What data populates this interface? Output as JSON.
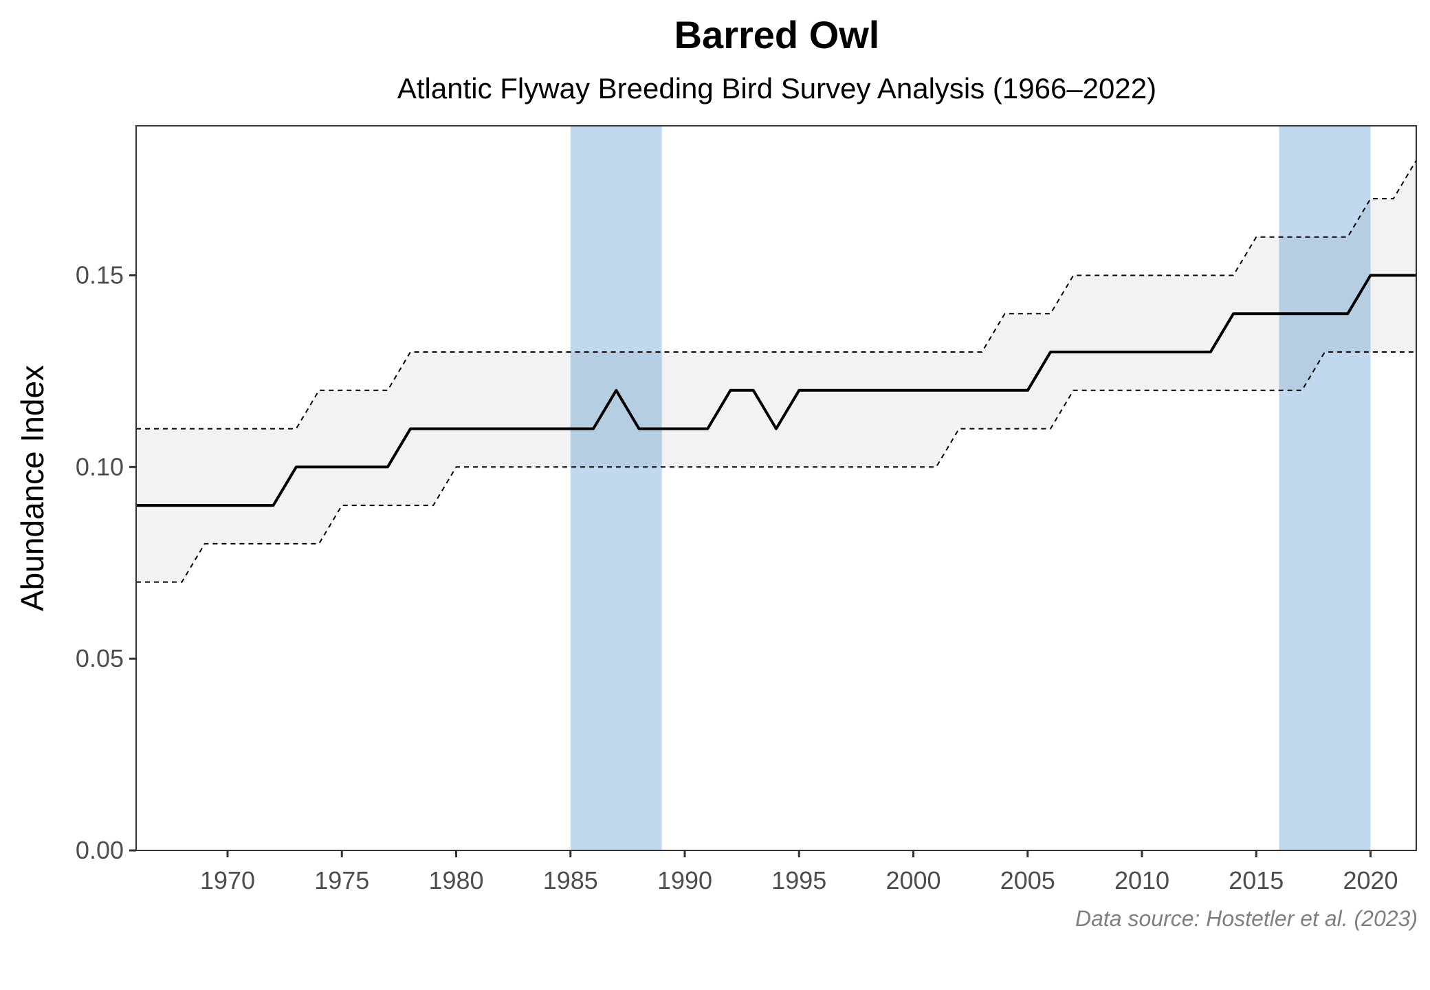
{
  "chart_data": {
    "type": "line",
    "title": "Barred Owl",
    "subtitle": "Atlantic Flyway Breeding Bird Survey Analysis (1966–2022)",
    "xlabel": "",
    "ylabel": "Abundance Index",
    "caption": "Data source: Hostetler et al. (2023)",
    "xlim": [
      1966,
      2022
    ],
    "ylim": [
      0,
      0.189
    ],
    "x_ticks": [
      1970,
      1975,
      1980,
      1985,
      1990,
      1995,
      2000,
      2005,
      2010,
      2015,
      2020
    ],
    "x_tick_labels": [
      "1970",
      "1975",
      "1980",
      "1985",
      "1990",
      "1995",
      "2000",
      "2005",
      "2010",
      "2015",
      "2020"
    ],
    "y_ticks": [
      0,
      0.05,
      0.1,
      0.15
    ],
    "y_tick_labels": [
      "0.00",
      "0.05",
      "0.10",
      "0.15"
    ],
    "grid": false,
    "highlight_periods": [
      {
        "start": 1985,
        "end": 1989
      },
      {
        "start": 2016,
        "end": 2020
      }
    ],
    "colors": {
      "highlight": "#bdd7ee",
      "ci_band": "#f2f2f2",
      "line": "#000000",
      "ci_line": "#000000"
    },
    "x": [
      1966,
      1967,
      1968,
      1969,
      1970,
      1971,
      1972,
      1973,
      1974,
      1975,
      1976,
      1977,
      1978,
      1979,
      1980,
      1981,
      1982,
      1983,
      1984,
      1985,
      1986,
      1987,
      1988,
      1989,
      1990,
      1991,
      1992,
      1993,
      1994,
      1995,
      1996,
      1997,
      1998,
      1999,
      2000,
      2001,
      2002,
      2003,
      2004,
      2005,
      2006,
      2007,
      2008,
      2009,
      2010,
      2011,
      2012,
      2013,
      2014,
      2015,
      2016,
      2017,
      2018,
      2019,
      2020,
      2021,
      2022
    ],
    "series": [
      {
        "role": "estimate",
        "values": [
          0.09,
          0.09,
          0.09,
          0.09,
          0.09,
          0.09,
          0.09,
          0.1,
          0.1,
          0.1,
          0.1,
          0.1,
          0.11,
          0.11,
          0.11,
          0.11,
          0.11,
          0.11,
          0.11,
          0.11,
          0.11,
          0.12,
          0.11,
          0.11,
          0.11,
          0.11,
          0.12,
          0.12,
          0.11,
          0.12,
          0.12,
          0.12,
          0.12,
          0.12,
          0.12,
          0.12,
          0.12,
          0.12,
          0.12,
          0.12,
          0.13,
          0.13,
          0.13,
          0.13,
          0.13,
          0.13,
          0.13,
          0.13,
          0.14,
          0.14,
          0.14,
          0.14,
          0.14,
          0.14,
          0.15,
          0.15,
          0.15
        ]
      },
      {
        "role": "lower_ci",
        "values": [
          0.07,
          0.07,
          0.07,
          0.08,
          0.08,
          0.08,
          0.08,
          0.08,
          0.08,
          0.09,
          0.09,
          0.09,
          0.09,
          0.09,
          0.1,
          0.1,
          0.1,
          0.1,
          0.1,
          0.1,
          0.1,
          0.1,
          0.1,
          0.1,
          0.1,
          0.1,
          0.1,
          0.1,
          0.1,
          0.1,
          0.1,
          0.1,
          0.1,
          0.1,
          0.1,
          0.1,
          0.11,
          0.11,
          0.11,
          0.11,
          0.11,
          0.12,
          0.12,
          0.12,
          0.12,
          0.12,
          0.12,
          0.12,
          0.12,
          0.12,
          0.12,
          0.12,
          0.13,
          0.13,
          0.13,
          0.13,
          0.13
        ]
      },
      {
        "role": "upper_ci",
        "values": [
          0.11,
          0.11,
          0.11,
          0.11,
          0.11,
          0.11,
          0.11,
          0.11,
          0.12,
          0.12,
          0.12,
          0.12,
          0.13,
          0.13,
          0.13,
          0.13,
          0.13,
          0.13,
          0.13,
          0.13,
          0.13,
          0.13,
          0.13,
          0.13,
          0.13,
          0.13,
          0.13,
          0.13,
          0.13,
          0.13,
          0.13,
          0.13,
          0.13,
          0.13,
          0.13,
          0.13,
          0.13,
          0.13,
          0.14,
          0.14,
          0.14,
          0.15,
          0.15,
          0.15,
          0.15,
          0.15,
          0.15,
          0.15,
          0.15,
          0.16,
          0.16,
          0.16,
          0.16,
          0.16,
          0.17,
          0.17,
          0.18
        ]
      }
    ]
  }
}
